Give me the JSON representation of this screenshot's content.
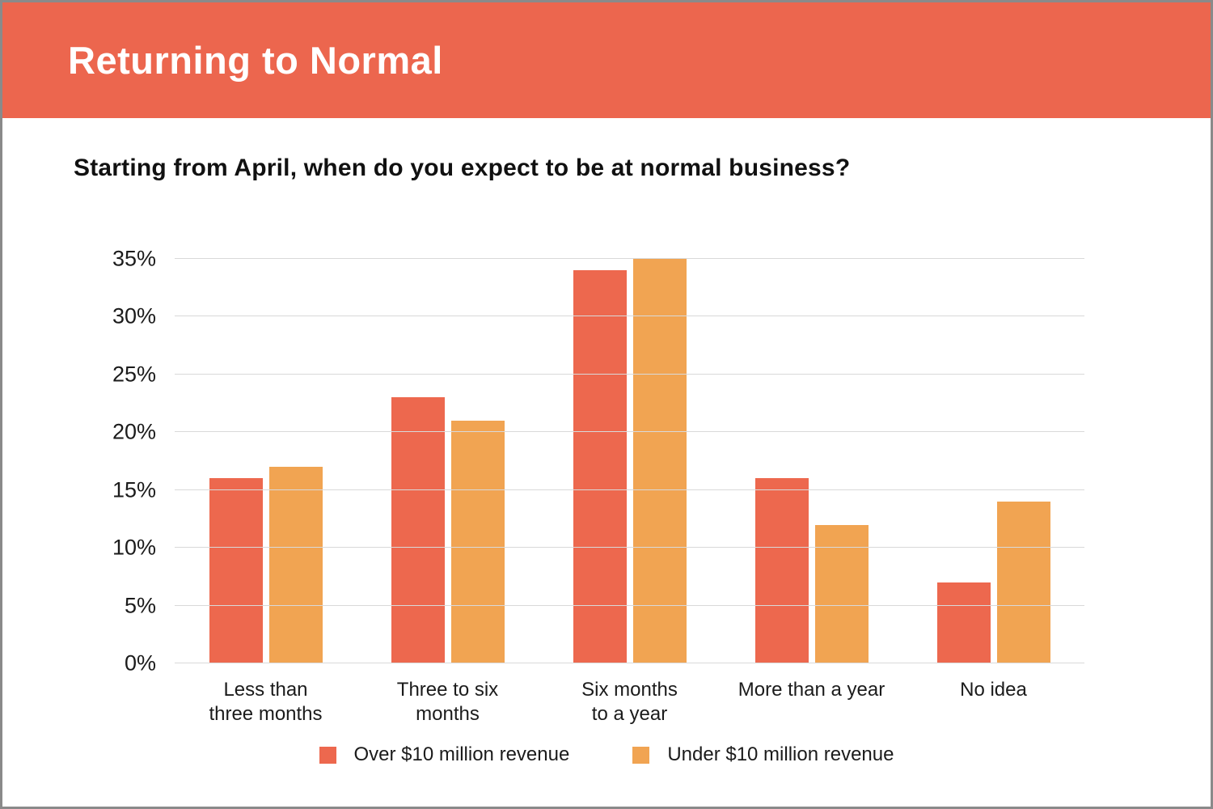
{
  "header": {
    "title": "Returning to Normal",
    "background_color": "#EC664E",
    "text_color": "#FFFFFF"
  },
  "question": "Starting from April, when do you expect to be at normal business?",
  "colors": {
    "series_over": "#ED684E",
    "series_under": "#F1A452",
    "gridline": "#D9D9D9",
    "text": "#1B1B1B",
    "page_border": "#8A8A8A"
  },
  "chart_data": {
    "type": "bar",
    "title": "Starting from April, when do you expect to be at normal business?",
    "categories": [
      "Less than three months",
      "Three to six months",
      "Six months to a year",
      "More than a year",
      "No idea"
    ],
    "category_lines": [
      [
        "Less than",
        "three months"
      ],
      [
        "Three to six",
        "months"
      ],
      [
        "Six months",
        "to a year"
      ],
      [
        "More than a year"
      ],
      [
        "No idea"
      ]
    ],
    "series": [
      {
        "name": "Over $10 million revenue",
        "color": "#ED684E",
        "values": [
          16,
          23,
          34,
          16,
          7
        ]
      },
      {
        "name": "Under $10 million revenue",
        "color": "#F1A452",
        "values": [
          17,
          21,
          35,
          12,
          14
        ]
      }
    ],
    "xlabel": "",
    "ylabel": "",
    "ylim": [
      0,
      35
    ],
    "yticks": [
      0,
      5,
      10,
      15,
      20,
      25,
      30,
      35
    ],
    "ytick_suffix": "%",
    "grid": true,
    "legend_position": "bottom"
  }
}
